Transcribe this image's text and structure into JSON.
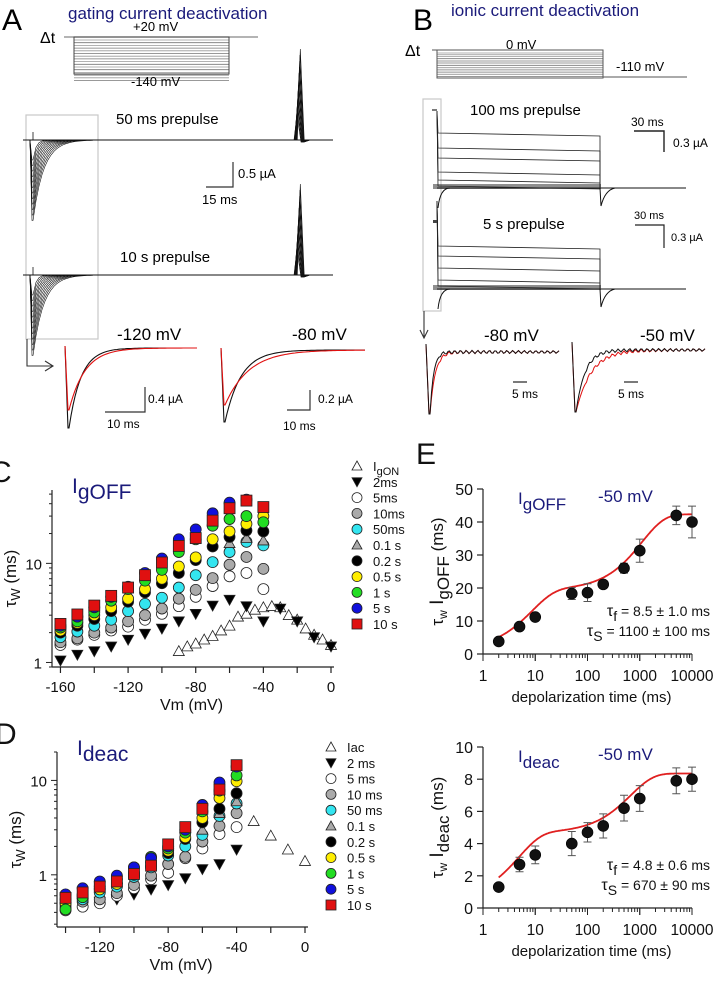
{
  "panels": {
    "A": {
      "letter": "A",
      "title": "gating current deactivation",
      "protocol": {
        "delta_t": "Δt",
        "top_voltage": "+20 mV",
        "bottom_voltage": "-140 mV"
      },
      "trace_labels": [
        "50 ms prepulse",
        "10 s prepulse"
      ],
      "scalebar_main": {
        "current": "0.5 µA",
        "time": "15 ms"
      },
      "insets": [
        {
          "voltage": "-120 mV",
          "current": "0.4 µA",
          "time": "10 ms"
        },
        {
          "voltage": "-80 mV",
          "current": "0.2 µA",
          "time": "10 ms"
        }
      ]
    },
    "B": {
      "letter": "B",
      "title": "ionic current deactivation",
      "protocol": {
        "delta_t": "Δt",
        "top_voltage": "0 mV",
        "bottom_voltage": "-110 mV"
      },
      "trace_labels": [
        "100 ms prepulse",
        "5 s prepulse"
      ],
      "scalebars": [
        {
          "time": "30 ms",
          "current": "0.3 µA"
        },
        {
          "time": "30 ms",
          "current": "0.3 µA"
        }
      ],
      "insets": [
        {
          "voltage": "-80 mV",
          "time": "5 ms"
        },
        {
          "voltage": "-50 mV",
          "time": "5 ms"
        }
      ]
    }
  },
  "colors": {
    "navy": "#1a1a7a",
    "red": "#e01010",
    "fit_red": "#e02020",
    "gray": "#aaaaaa",
    "cyan": "#33e5f0",
    "yellow": "#ffee00",
    "green": "#22dd22",
    "blue": "#1010dd",
    "black": "#000000",
    "white": "#ffffff"
  },
  "chart_data": [
    {
      "id": "C",
      "letter": "C",
      "type": "scatter",
      "title": "IgOFF",
      "title_main": "I",
      "title_sub": "gOFF",
      "xlabel": "Vm (mV)",
      "ylabel": "τW (ms)",
      "ylabel_main": "τ",
      "ylabel_sub": "W",
      "ylabel_unit": "(ms)",
      "yscale": "log",
      "xlim": [
        -165,
        0
      ],
      "ylim": [
        0.9,
        55
      ],
      "xticks": [
        -160,
        -120,
        -80,
        -40,
        0
      ],
      "yticks": [
        1,
        10
      ],
      "legend_position": "right",
      "series": [
        {
          "name": "IgON",
          "label_main": "I",
          "label_sub": "gON",
          "marker": "triangle-up",
          "color": "#ffffff",
          "x": [
            -90,
            -85,
            -80,
            -75,
            -70,
            -65,
            -60,
            -55,
            -50,
            -45,
            -40,
            -35,
            -30,
            -25,
            -20,
            -15,
            -10,
            -5,
            0
          ],
          "y": [
            1.3,
            1.45,
            1.55,
            1.7,
            1.85,
            2.1,
            2.35,
            2.9,
            3.1,
            3.4,
            3.6,
            3.7,
            3.6,
            3.0,
            2.7,
            2.2,
            1.9,
            1.7,
            1.5
          ]
        },
        {
          "name": "2ms",
          "marker": "triangle-down",
          "color": "#000000",
          "x": [
            -160,
            -150,
            -140,
            -130,
            -120,
            -110,
            -100,
            -90,
            -80,
            -70,
            -60,
            -50,
            -40,
            -30,
            -20,
            -10,
            0
          ],
          "y": [
            1.05,
            1.2,
            1.3,
            1.45,
            1.7,
            1.95,
            2.2,
            2.6,
            3.1,
            3.75,
            4.3,
            3.7,
            2.6,
            3.5,
            2.6,
            1.8,
            1.45
          ]
        },
        {
          "name": "5ms",
          "marker": "circle",
          "color": "#ffffff",
          "x": [
            -160,
            -150,
            -140,
            -130,
            -120,
            -110,
            -100,
            -90,
            -80,
            -70,
            -60,
            -50,
            -40
          ],
          "y": [
            1.5,
            1.7,
            1.9,
            2.1,
            2.3,
            2.7,
            3.1,
            3.7,
            4.6,
            5.9,
            7.4,
            8.0,
            5.5
          ]
        },
        {
          "name": "10ms",
          "marker": "circle",
          "color": "#aaaaaa",
          "x": [
            -160,
            -150,
            -140,
            -130,
            -120,
            -110,
            -100,
            -90,
            -80,
            -70,
            -60,
            -50,
            -40
          ],
          "y": [
            1.6,
            1.75,
            2.0,
            2.25,
            2.6,
            3.0,
            3.5,
            4.4,
            5.4,
            7.1,
            9.7,
            11.6,
            8.8
          ]
        },
        {
          "name": "50ms",
          "marker": "circle",
          "color": "#33e5f0",
          "x": [
            -160,
            -150,
            -140,
            -130,
            -120,
            -110,
            -100,
            -90,
            -80,
            -70,
            -60,
            -50,
            -40
          ],
          "y": [
            1.8,
            2.05,
            2.35,
            2.7,
            3.3,
            3.9,
            4.5,
            5.7,
            7.6,
            10.3,
            13.0,
            16.5,
            15.2
          ]
        },
        {
          "name": "0.1 s",
          "marker": "triangle-up",
          "color": "#aaaaaa",
          "x": [
            -60,
            -50,
            -40
          ],
          "y": [
            16.0,
            18.0,
            17.0
          ]
        },
        {
          "name": "0.2 s",
          "marker": "circle",
          "color": "#000000",
          "x": [
            -160,
            -150,
            -140,
            -130,
            -120,
            -110,
            -100,
            -90,
            -80,
            -70,
            -60,
            -50,
            -40
          ],
          "y": [
            2.0,
            2.35,
            2.75,
            3.3,
            4.1,
            5.1,
            6.3,
            8.0,
            10.8,
            14.8,
            18.5,
            21.5,
            21.0
          ]
        },
        {
          "name": "0.5 s",
          "marker": "circle",
          "color": "#ffee00",
          "x": [
            -160,
            -150,
            -140,
            -130,
            -120,
            -110,
            -100,
            -90,
            -80,
            -70,
            -60,
            -50,
            -40
          ],
          "y": [
            2.1,
            2.5,
            3.0,
            3.6,
            4.4,
            5.5,
            7.0,
            9.3,
            11.5,
            17.5,
            21.0,
            25.0,
            30.0
          ]
        },
        {
          "name": "1 s",
          "marker": "circle",
          "color": "#22dd22",
          "x": [
            -160,
            -150,
            -140,
            -130,
            -120,
            -110,
            -100,
            -90,
            -80,
            -70,
            -60,
            -50,
            -40
          ],
          "y": [
            2.25,
            2.6,
            3.2,
            4.2,
            5.5,
            6.7,
            8.6,
            13.0,
            17.5,
            24.0,
            28.0,
            30.0,
            26.0
          ]
        },
        {
          "name": "5 s",
          "marker": "circle",
          "color": "#1010dd",
          "x": [
            -160,
            -150,
            -140,
            -130,
            -120,
            -110,
            -100,
            -90,
            -80,
            -70,
            -60,
            -50
          ],
          "y": [
            2.35,
            2.9,
            3.6,
            4.6,
            5.8,
            8.0,
            11.2,
            17.5,
            22.0,
            32.0,
            41.0,
            44.0
          ]
        },
        {
          "name": "10 s",
          "marker": "square",
          "color": "#e01010",
          "x": [
            -160,
            -150,
            -140,
            -130,
            -120,
            -110,
            -100,
            -90,
            -80,
            -70,
            -60,
            -50,
            -40
          ],
          "y": [
            2.45,
            3.05,
            3.75,
            4.7,
            5.7,
            7.6,
            10.2,
            15.0,
            18.0,
            27.0,
            36.0,
            43.0,
            37.0
          ]
        }
      ]
    },
    {
      "id": "D",
      "letter": "D",
      "type": "scatter",
      "title": "Ideac",
      "title_main": "I",
      "title_sub": "deac",
      "xlabel": "Vm (mV)",
      "ylabel": "τW (ms)",
      "ylabel_main": "τ",
      "ylabel_sub": "W",
      "ylabel_unit": "(ms)",
      "yscale": "log",
      "xlim": [
        -145,
        0
      ],
      "ylim": [
        0.28,
        20
      ],
      "xticks": [
        -120,
        -80,
        -40,
        0
      ],
      "yticks": [
        1,
        10
      ],
      "legend_position": "right",
      "series": [
        {
          "name": "Iac",
          "marker": "triangle-up",
          "color": "#ffffff",
          "x": [
            -30,
            -20,
            -10,
            0
          ],
          "y": [
            3.7,
            2.6,
            1.85,
            1.4
          ]
        },
        {
          "name": "2 ms",
          "marker": "triangle-down",
          "color": "#000000",
          "x": [
            -140,
            -130,
            -120,
            -110,
            -100,
            -90,
            -80,
            -70,
            -60,
            -50,
            -40
          ],
          "y": [
            0.45,
            0.5,
            0.52,
            0.55,
            0.62,
            0.7,
            0.78,
            0.92,
            1.15,
            1.3,
            1.85
          ]
        },
        {
          "name": "5 ms",
          "marker": "circle",
          "color": "#ffffff",
          "x": [
            -140,
            -130,
            -120,
            -110,
            -100,
            -90,
            -80,
            -70,
            -60,
            -50,
            -40
          ],
          "y": [
            0.42,
            0.46,
            0.5,
            0.6,
            0.72,
            0.9,
            1.05,
            1.5,
            1.9,
            2.7,
            3.2
          ]
        },
        {
          "name": "10 ms",
          "marker": "circle",
          "color": "#aaaaaa",
          "x": [
            -140,
            -130,
            -120,
            -110,
            -100,
            -90,
            -80,
            -70,
            -60,
            -50,
            -40
          ],
          "y": [
            0.45,
            0.52,
            0.55,
            0.64,
            0.78,
            0.98,
            1.3,
            1.55,
            2.25,
            3.3,
            4.5
          ]
        },
        {
          "name": "50 ms",
          "marker": "circle",
          "color": "#33e5f0",
          "x": [
            -140,
            -130,
            -120,
            -110,
            -100,
            -90,
            -80,
            -70,
            -60,
            -50,
            -40
          ],
          "y": [
            0.48,
            0.55,
            0.65,
            0.75,
            0.95,
            1.2,
            1.6,
            2.0,
            2.65,
            4.2,
            5.7
          ]
        },
        {
          "name": "0.1 s",
          "marker": "triangle-up",
          "color": "#aaaaaa",
          "x": [
            -60,
            -50,
            -40
          ],
          "y": [
            3.0,
            4.5,
            6.0
          ]
        },
        {
          "name": "0.2 s",
          "marker": "circle",
          "color": "#000000",
          "x": [
            -140,
            -130,
            -120,
            -110,
            -100,
            -90,
            -80,
            -70,
            -60,
            -50,
            -40
          ],
          "y": [
            0.55,
            0.62,
            0.72,
            0.82,
            1.0,
            1.25,
            1.7,
            2.4,
            3.6,
            5.0,
            7.3
          ]
        },
        {
          "name": "0.5 s",
          "marker": "circle",
          "color": "#ffee00",
          "x": [
            -140,
            -130,
            -120,
            -110,
            -100,
            -90,
            -80,
            -70,
            -60,
            -50,
            -40
          ],
          "y": [
            0.5,
            0.6,
            0.7,
            0.8,
            1.05,
            1.35,
            1.8,
            2.5,
            4.0,
            6.5,
            9.8
          ]
        },
        {
          "name": "1 s",
          "marker": "circle",
          "color": "#22dd22",
          "x": [
            -140,
            -130,
            -120,
            -110,
            -100,
            -90,
            -80,
            -70,
            -60,
            -50,
            -40
          ],
          "y": [
            0.43,
            0.58,
            0.75,
            0.9,
            1.2,
            1.55,
            1.9,
            2.8,
            4.7,
            7.8,
            11.3
          ]
        },
        {
          "name": "5 s",
          "marker": "circle",
          "color": "#1010dd",
          "x": [
            -140,
            -130,
            -120,
            -110,
            -100,
            -90,
            -80,
            -70,
            -60,
            -50,
            -40
          ],
          "y": [
            0.62,
            0.72,
            0.85,
            0.98,
            1.2,
            1.5,
            2.0,
            3.0,
            5.5,
            9.5,
            14.0
          ]
        },
        {
          "name": "10 s",
          "marker": "square",
          "color": "#e01010",
          "x": [
            -140,
            -130,
            -120,
            -110,
            -100,
            -90,
            -80,
            -70,
            -60,
            -50,
            -40
          ],
          "y": [
            0.57,
            0.65,
            0.75,
            0.85,
            1.02,
            1.25,
            2.1,
            3.2,
            5.0,
            8.0,
            14.5
          ]
        }
      ]
    },
    {
      "id": "E_top",
      "letter": "E",
      "type": "scatter",
      "title": "IgOFF -50 mV",
      "title_main": "I",
      "title_sub": "gOFF",
      "title_voltage": "-50 mV",
      "xlabel": "depolarization time (ms)",
      "ylabel": "τw IgOFF (ms)",
      "ylabel_tau": "τ",
      "ylabel_tau_sub": "w",
      "ylabel_main": "I",
      "ylabel_sub": "gOFF",
      "ylabel_unit": "(ms)",
      "xscale": "log",
      "xlim": [
        1,
        10000
      ],
      "ylim": [
        0,
        50
      ],
      "xticks": [
        1,
        10,
        100,
        1000,
        10000
      ],
      "yticks": [
        0,
        10,
        20,
        30,
        40,
        50
      ],
      "x": [
        2,
        5,
        10,
        50,
        100,
        200,
        500,
        1000,
        5000,
        10000
      ],
      "y": [
        3.8,
        8.3,
        11.2,
        18.3,
        18.6,
        21.1,
        26.0,
        31.3,
        42.0,
        40.0
      ],
      "err": [
        0.6,
        0.8,
        0.8,
        1.8,
        2.7,
        1.0,
        1.5,
        3.5,
        2.8,
        4.8
      ],
      "fit": {
        "A0": 0,
        "A1": 18,
        "tau_f": 8.5,
        "A2": 23,
        "tau_s": 1100
      },
      "annotations": [
        {
          "sym": "τ",
          "sub": "f",
          "text": " = 8.5 ± 1.0 ms"
        },
        {
          "sym": "τ",
          "sub": "S",
          "text": " = 1100 ± 100 ms"
        }
      ]
    },
    {
      "id": "E_bottom",
      "type": "scatter",
      "title": "Ideac -50 mV",
      "title_main": "I",
      "title_sub": "deac",
      "title_voltage": "-50 mV",
      "xlabel": "depolarization time (ms)",
      "ylabel": "τw Ideac (ms)",
      "ylabel_tau": "τ",
      "ylabel_tau_sub": "w",
      "ylabel_main": "I",
      "ylabel_sub": "deac",
      "ylabel_unit": "(ms)",
      "xscale": "log",
      "xlim": [
        1,
        10000
      ],
      "ylim": [
        0,
        10
      ],
      "xticks": [
        1,
        10,
        100,
        1000,
        10000
      ],
      "yticks": [
        0,
        2,
        4,
        6,
        8,
        10
      ],
      "x": [
        2,
        5,
        10,
        50,
        100,
        200,
        500,
        1000,
        5000,
        10000
      ],
      "y": [
        1.3,
        2.7,
        3.3,
        4.0,
        4.7,
        5.1,
        6.2,
        6.8,
        7.9,
        8.0
      ],
      "err": [
        0.15,
        0.45,
        0.55,
        0.75,
        0.6,
        0.75,
        0.8,
        0.8,
        0.8,
        0.75
      ],
      "fit": {
        "A0": 0,
        "A1": 4.2,
        "tau_f": 4.8,
        "A2": 3.7,
        "tau_s": 670
      },
      "annotations": [
        {
          "sym": "τ",
          "sub": "f",
          "text": " = 4.8 ± 0.6 ms"
        },
        {
          "sym": "τ",
          "sub": "S",
          "text": " = 670 ± 90 ms"
        }
      ]
    }
  ]
}
